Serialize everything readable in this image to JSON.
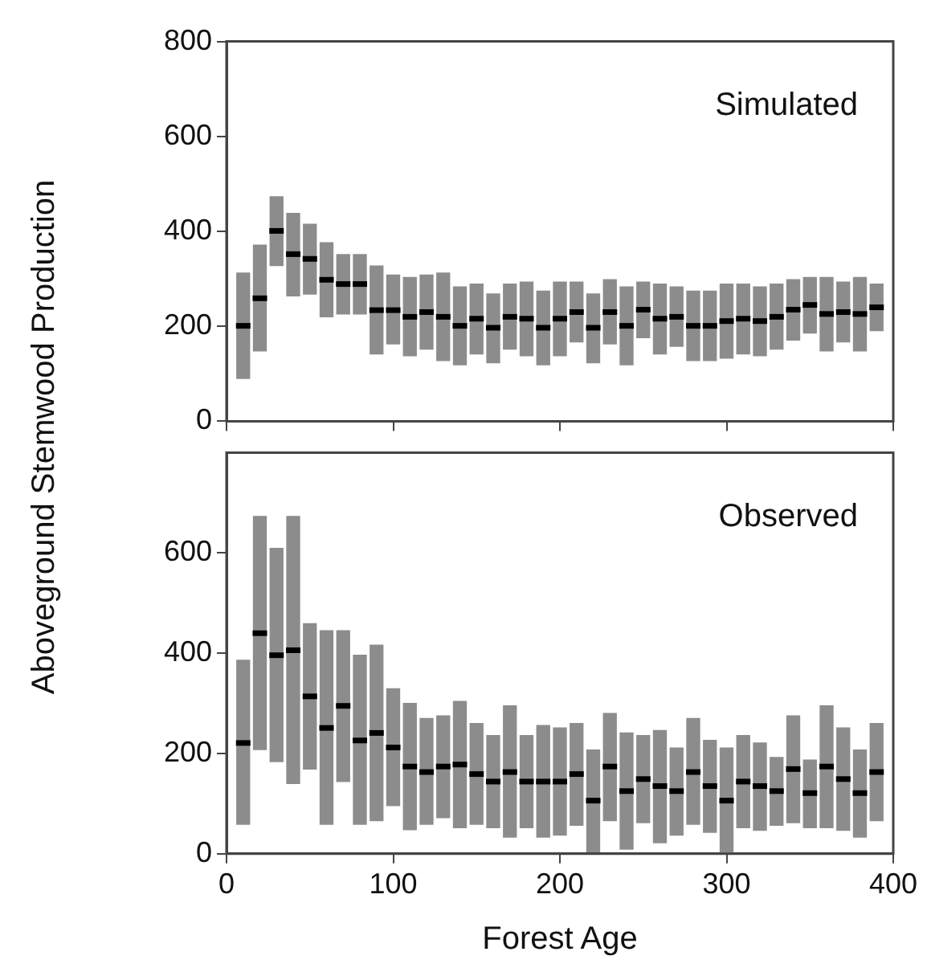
{
  "chart_data": [
    {
      "type": "box",
      "title": "Simulated",
      "ylabel": "Aboveground Stemwood Production",
      "xlim": [
        0,
        400
      ],
      "xticks": [
        0,
        100,
        200,
        300,
        400
      ],
      "ylim": [
        0,
        800
      ],
      "yticks": [
        0,
        200,
        400,
        600,
        800
      ],
      "tick_labels": "y",
      "grid": false,
      "legend": false,
      "series": [
        {
          "color": "#8c8c8c",
          "x": [
            10,
            20,
            30,
            40,
            50,
            60,
            70,
            80,
            90,
            100,
            110,
            120,
            130,
            140,
            150,
            160,
            170,
            180,
            190,
            200,
            210,
            220,
            230,
            240,
            250,
            260,
            270,
            280,
            290,
            300,
            310,
            320,
            330,
            340,
            350,
            360,
            370,
            380,
            390
          ],
          "boxes": [
            {
              "low": 90,
              "q1": 90,
              "median": 201,
              "q3": 312,
              "high": 312
            },
            {
              "low": 148,
              "q1": 148,
              "median": 259,
              "q3": 371,
              "high": 371
            },
            {
              "low": 328,
              "q1": 328,
              "median": 401,
              "q3": 473,
              "high": 473
            },
            {
              "low": 264,
              "q1": 264,
              "median": 352,
              "q3": 438,
              "high": 438
            },
            {
              "low": 268,
              "q1": 268,
              "median": 342,
              "q3": 415,
              "high": 415
            },
            {
              "low": 220,
              "q1": 220,
              "median": 298,
              "q3": 376,
              "high": 376
            },
            {
              "low": 226,
              "q1": 226,
              "median": 289,
              "q3": 351,
              "high": 351
            },
            {
              "low": 226,
              "q1": 226,
              "median": 289,
              "q3": 351,
              "high": 351
            },
            {
              "low": 142,
              "q1": 142,
              "median": 234,
              "q3": 327,
              "high": 327
            },
            {
              "low": 163,
              "q1": 163,
              "median": 234,
              "q3": 308,
              "high": 308
            },
            {
              "low": 138,
              "q1": 138,
              "median": 220,
              "q3": 303,
              "high": 303
            },
            {
              "low": 152,
              "q1": 152,
              "median": 230,
              "q3": 308,
              "high": 308
            },
            {
              "low": 128,
              "q1": 128,
              "median": 220,
              "q3": 312,
              "high": 312
            },
            {
              "low": 119,
              "q1": 119,
              "median": 201,
              "q3": 283,
              "high": 283
            },
            {
              "low": 142,
              "q1": 142,
              "median": 216,
              "q3": 289,
              "high": 289
            },
            {
              "low": 123,
              "q1": 123,
              "median": 197,
              "q3": 268,
              "high": 268
            },
            {
              "low": 152,
              "q1": 152,
              "median": 220,
              "q3": 289,
              "high": 289
            },
            {
              "low": 138,
              "q1": 138,
              "median": 216,
              "q3": 293,
              "high": 293
            },
            {
              "low": 119,
              "q1": 119,
              "median": 197,
              "q3": 274,
              "high": 274
            },
            {
              "low": 138,
              "q1": 138,
              "median": 216,
              "q3": 293,
              "high": 293
            },
            {
              "low": 167,
              "q1": 167,
              "median": 230,
              "q3": 293,
              "high": 293
            },
            {
              "low": 123,
              "q1": 123,
              "median": 197,
              "q3": 268,
              "high": 268
            },
            {
              "low": 163,
              "q1": 163,
              "median": 230,
              "q3": 298,
              "high": 298
            },
            {
              "low": 119,
              "q1": 119,
              "median": 201,
              "q3": 283,
              "high": 283
            },
            {
              "low": 176,
              "q1": 176,
              "median": 235,
              "q3": 293,
              "high": 293
            },
            {
              "low": 142,
              "q1": 142,
              "median": 216,
              "q3": 289,
              "high": 289
            },
            {
              "low": 158,
              "q1": 158,
              "median": 220,
              "q3": 283,
              "high": 283
            },
            {
              "low": 128,
              "q1": 128,
              "median": 201,
              "q3": 274,
              "high": 274
            },
            {
              "low": 128,
              "q1": 128,
              "median": 201,
              "q3": 274,
              "high": 274
            },
            {
              "low": 133,
              "q1": 133,
              "median": 211,
              "q3": 289,
              "high": 289
            },
            {
              "low": 142,
              "q1": 142,
              "median": 216,
              "q3": 289,
              "high": 289
            },
            {
              "low": 138,
              "q1": 138,
              "median": 211,
              "q3": 283,
              "high": 283
            },
            {
              "low": 152,
              "q1": 152,
              "median": 220,
              "q3": 289,
              "high": 289
            },
            {
              "low": 171,
              "q1": 171,
              "median": 235,
              "q3": 298,
              "high": 298
            },
            {
              "low": 186,
              "q1": 186,
              "median": 245,
              "q3": 303,
              "high": 303
            },
            {
              "low": 148,
              "q1": 148,
              "median": 226,
              "q3": 303,
              "high": 303
            },
            {
              "low": 167,
              "q1": 167,
              "median": 230,
              "q3": 293,
              "high": 293
            },
            {
              "low": 148,
              "q1": 148,
              "median": 226,
              "q3": 303,
              "high": 303
            },
            {
              "low": 191,
              "q1": 191,
              "median": 240,
              "q3": 289,
              "high": 289
            }
          ]
        }
      ]
    },
    {
      "type": "box",
      "title": "Observed",
      "xlabel": "Forest Age",
      "xlim": [
        0,
        400
      ],
      "xticks": [
        0,
        100,
        200,
        300,
        400
      ],
      "ylim": [
        0,
        800
      ],
      "yticks": [
        0,
        200,
        400,
        600
      ],
      "grid": false,
      "legend": false,
      "series": [
        {
          "color": "#8c8c8c",
          "x": [
            10,
            20,
            30,
            40,
            50,
            60,
            70,
            80,
            90,
            100,
            110,
            120,
            130,
            140,
            150,
            160,
            170,
            180,
            190,
            200,
            210,
            220,
            230,
            240,
            250,
            260,
            270,
            280,
            290,
            300,
            310,
            320,
            330,
            340,
            350,
            360,
            370,
            380,
            390
          ],
          "boxes": [
            {
              "low": 59,
              "q1": 59,
              "median": 221,
              "q3": 386,
              "high": 386
            },
            {
              "low": 208,
              "q1": 208,
              "median": 440,
              "q3": 673,
              "high": 673
            },
            {
              "low": 184,
              "q1": 184,
              "median": 396,
              "q3": 609,
              "high": 609
            },
            {
              "low": 140,
              "q1": 140,
              "median": 406,
              "q3": 673,
              "high": 673
            },
            {
              "low": 169,
              "q1": 169,
              "median": 314,
              "q3": 459,
              "high": 459
            },
            {
              "low": 59,
              "q1": 59,
              "median": 251,
              "q3": 445,
              "high": 445
            },
            {
              "low": 144,
              "q1": 144,
              "median": 295,
              "q3": 445,
              "high": 445
            },
            {
              "low": 59,
              "q1": 59,
              "median": 226,
              "q3": 396,
              "high": 396
            },
            {
              "low": 66,
              "q1": 66,
              "median": 241,
              "q3": 416,
              "high": 416
            },
            {
              "low": 96,
              "q1": 96,
              "median": 212,
              "q3": 329,
              "high": 329
            },
            {
              "low": 48,
              "q1": 48,
              "median": 174,
              "q3": 300,
              "high": 300
            },
            {
              "low": 59,
              "q1": 59,
              "median": 163,
              "q3": 270,
              "high": 270
            },
            {
              "low": 72,
              "q1": 72,
              "median": 174,
              "q3": 275,
              "high": 275
            },
            {
              "low": 52,
              "q1": 52,
              "median": 178,
              "q3": 304,
              "high": 304
            },
            {
              "low": 59,
              "q1": 59,
              "median": 159,
              "q3": 260,
              "high": 260
            },
            {
              "low": 52,
              "q1": 52,
              "median": 144,
              "q3": 236,
              "high": 236
            },
            {
              "low": 33,
              "q1": 33,
              "median": 163,
              "q3": 295,
              "high": 295
            },
            {
              "low": 52,
              "q1": 52,
              "median": 144,
              "q3": 236,
              "high": 236
            },
            {
              "low": 33,
              "q1": 33,
              "median": 144,
              "q3": 256,
              "high": 256
            },
            {
              "low": 37,
              "q1": 37,
              "median": 144,
              "q3": 251,
              "high": 251
            },
            {
              "low": 57,
              "q1": 57,
              "median": 159,
              "q3": 260,
              "high": 260
            },
            {
              "low": 4,
              "q1": 4,
              "median": 106,
              "q3": 207,
              "high": 207
            },
            {
              "low": 66,
              "q1": 66,
              "median": 174,
              "q3": 280,
              "high": 280
            },
            {
              "low": 9,
              "q1": 9,
              "median": 125,
              "q3": 241,
              "high": 241
            },
            {
              "low": 62,
              "q1": 62,
              "median": 149,
              "q3": 236,
              "high": 236
            },
            {
              "low": 22,
              "q1": 22,
              "median": 135,
              "q3": 246,
              "high": 246
            },
            {
              "low": 37,
              "q1": 37,
              "median": 125,
              "q3": 211,
              "high": 211
            },
            {
              "low": 59,
              "q1": 59,
              "median": 163,
              "q3": 270,
              "high": 270
            },
            {
              "low": 43,
              "q1": 43,
              "median": 135,
              "q3": 226,
              "high": 226
            },
            {
              "low": 0,
              "q1": 0,
              "median": 106,
              "q3": 211,
              "high": 211
            },
            {
              "low": 52,
              "q1": 52,
              "median": 144,
              "q3": 236,
              "high": 236
            },
            {
              "low": 47,
              "q1": 47,
              "median": 135,
              "q3": 221,
              "high": 221
            },
            {
              "low": 57,
              "q1": 57,
              "median": 125,
              "q3": 192,
              "high": 192
            },
            {
              "low": 62,
              "q1": 62,
              "median": 169,
              "q3": 275,
              "high": 275
            },
            {
              "low": 52,
              "q1": 52,
              "median": 121,
              "q3": 187,
              "high": 187
            },
            {
              "low": 52,
              "q1": 52,
              "median": 174,
              "q3": 295,
              "high": 295
            },
            {
              "low": 47,
              "q1": 47,
              "median": 149,
              "q3": 251,
              "high": 251
            },
            {
              "low": 33,
              "q1": 33,
              "median": 121,
              "q3": 207,
              "high": 207
            },
            {
              "low": 66,
              "q1": 66,
              "median": 163,
              "q3": 260,
              "high": 260
            }
          ]
        }
      ]
    }
  ]
}
